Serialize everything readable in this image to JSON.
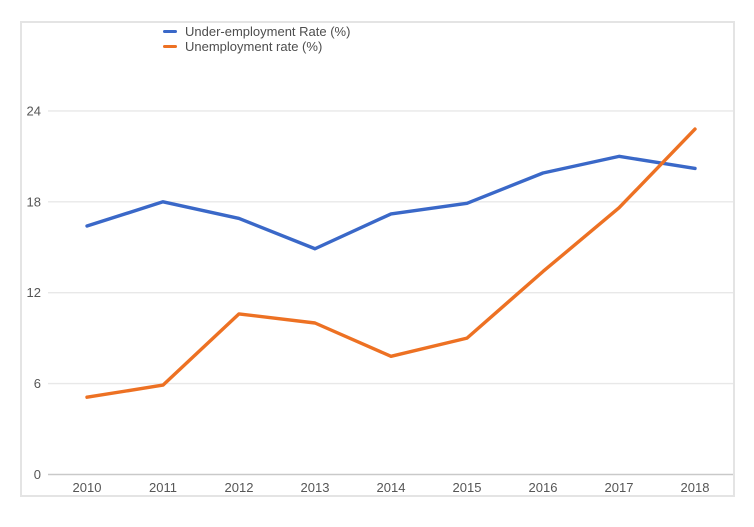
{
  "chart_data": {
    "type": "line",
    "title": "",
    "categories": [
      "2010",
      "2011",
      "2012",
      "2013",
      "2014",
      "2015",
      "2016",
      "2017",
      "2018"
    ],
    "series": [
      {
        "name": "Under-employment Rate (%)",
        "color": "#3a68c8",
        "values": [
          16.4,
          18.0,
          16.9,
          14.9,
          17.2,
          17.9,
          19.9,
          21.0,
          20.2
        ]
      },
      {
        "name": "Unemployment rate (%)",
        "color": "#ed7123",
        "values": [
          5.1,
          5.9,
          10.6,
          10.0,
          7.8,
          9.0,
          13.4,
          17.6,
          22.8
        ]
      }
    ],
    "xlabel": "",
    "ylabel": "",
    "yticks": [
      0,
      6,
      12,
      18,
      24
    ],
    "ylim": [
      0,
      24
    ],
    "grid": true,
    "legend_position": "top-left-inside",
    "colors": {
      "gridline": "#e8e8e8",
      "baseline": "#c9c9c9",
      "frame_border": "#e4e4e4",
      "tick_label": "#565656",
      "legend_text": "#4e4e4e"
    }
  }
}
